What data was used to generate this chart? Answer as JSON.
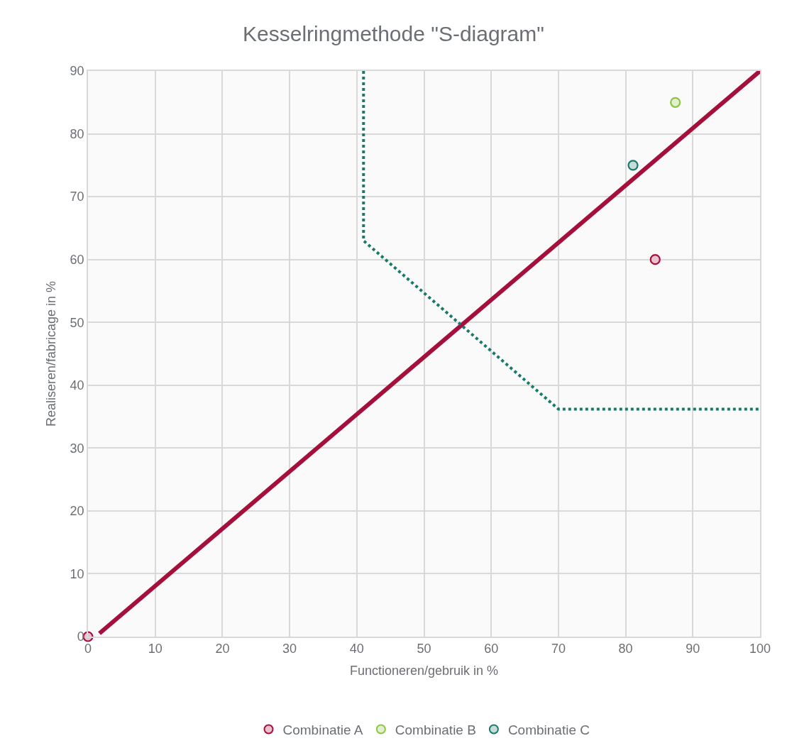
{
  "chart_data": {
    "type": "scatter",
    "title": "Kesselringmethode \"S-diagram\"",
    "xlabel": "Functioneren/gebruik in %",
    "ylabel": "Realiseren/fabricage in %",
    "xlim": [
      0,
      100
    ],
    "xticks": [
      0,
      10,
      20,
      30,
      40,
      50,
      60,
      70,
      80,
      90,
      100
    ],
    "ylim": [
      0,
      90
    ],
    "yticks": [
      0,
      10,
      20,
      30,
      40,
      50,
      60,
      70,
      80,
      90
    ],
    "grid": true,
    "legend": "bottom",
    "marker": "circle",
    "series": [
      {
        "type": "line",
        "color": "#a50f3c",
        "x": [
          1.7,
          100
        ],
        "values": [
          0.5,
          90
        ],
        "line_style": "solid",
        "marker": "none"
      },
      {
        "type": "line",
        "color": "#1a7a6a",
        "x": [
          41,
          41,
          70,
          100
        ],
        "values": [
          90,
          63,
          36.2,
          36.2
        ],
        "line_style": "dotted",
        "marker": "none"
      },
      {
        "name": "Combinatie A",
        "color": "#a50f3c",
        "x": [
          0,
          84.4
        ],
        "values": [
          0,
          60
        ]
      },
      {
        "name": "Combinatie B",
        "color": "#8cc63f",
        "x": [
          87.4
        ],
        "values": [
          85
        ]
      },
      {
        "name": "Combinatie C",
        "color": "#1a7a6a",
        "x": [
          81.1
        ],
        "values": [
          75
        ]
      }
    ]
  }
}
